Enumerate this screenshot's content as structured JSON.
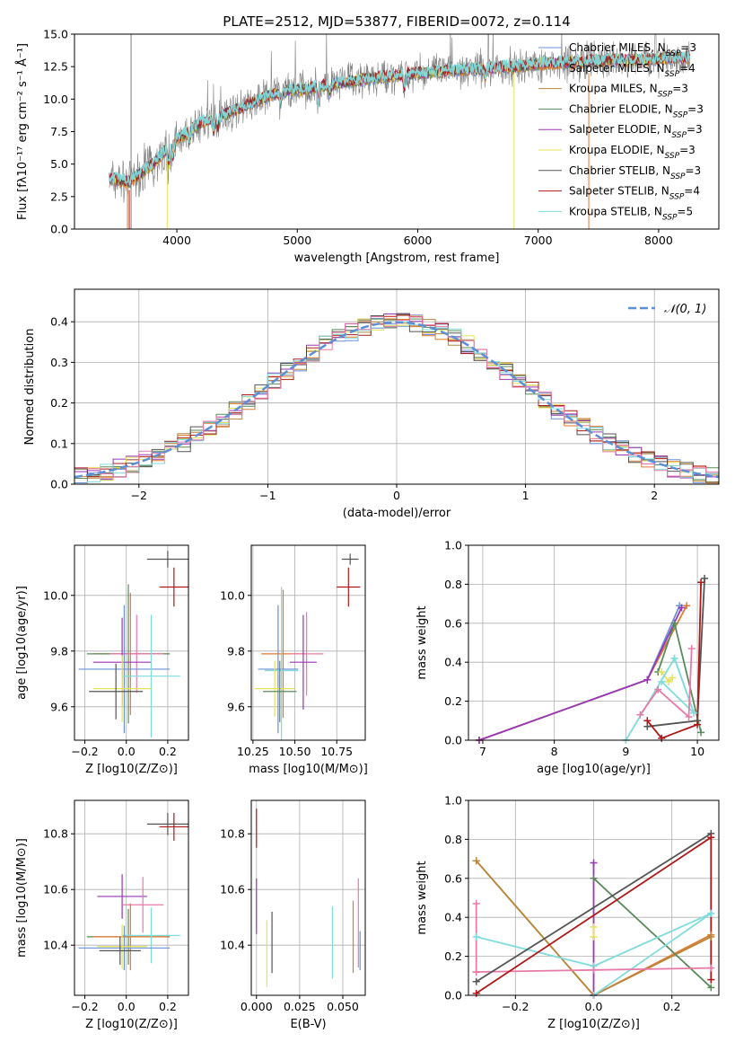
{
  "colors": {
    "chabrier_miles": "#6a8fd8",
    "salpeter_miles": "#e07a2e",
    "kroupa_miles": "#b8863b",
    "chabrier_elodie": "#5a8a5a",
    "salpeter_elodie": "#9a36b8",
    "kroupa_elodie": "#e3e35a",
    "chabrier_stelib": "#555555",
    "salpeter_stelib": "#b01818",
    "kroupa_stelib": "#80dcdc",
    "extra_pink": "#e87aa8",
    "spectrum_gray": "#7f7f7f",
    "gaussian": "#5b8fd6"
  },
  "chart_data": [
    {
      "type": "line",
      "title": "PLATE=2512, MJD=53877, FIBERID=0072, z=0.114",
      "xlabel": "wavelength [Angstrom, rest frame]",
      "ylabel": "Flux [fλ10⁻¹⁷ erg cm⁻² s⁻¹ Å⁻¹]",
      "xlim": [
        3150,
        8500
      ],
      "ylim": [
        0,
        15
      ],
      "xticks": [
        "4000",
        "5000",
        "6000",
        "7000",
        "8000"
      ],
      "yticks": [
        "0.0",
        "2.5",
        "5.0",
        "7.5",
        "10.0",
        "12.5",
        "15.0"
      ],
      "legend": "upper-right",
      "continuum_x": [
        3450,
        3600,
        3800,
        4000,
        4200,
        4400,
        4600,
        4800,
        5000,
        5200,
        5400,
        5600,
        5800,
        6000,
        6200,
        6400,
        6600,
        6800,
        7000,
        7200,
        7400,
        7600,
        7800,
        8000,
        8250
      ],
      "continuum_y": [
        3.9,
        3.6,
        5.0,
        6.9,
        8.2,
        8.8,
        9.6,
        10.4,
        10.7,
        11.0,
        11.3,
        11.6,
        11.8,
        12.0,
        12.1,
        12.3,
        12.4,
        12.5,
        12.7,
        12.8,
        12.9,
        13.0,
        13.0,
        13.1,
        13.2
      ],
      "series": [
        {
          "name": "Chabrier MILES, N_SSP=3",
          "color_key": "chabrier_miles"
        },
        {
          "name": "Salpeter MILES, N_SSP=4",
          "color_key": "salpeter_miles"
        },
        {
          "name": "Kroupa MILES, N_SSP=3",
          "color_key": "kroupa_miles"
        },
        {
          "name": "Chabrier ELODIE, N_SSP=3",
          "color_key": "chabrier_elodie"
        },
        {
          "name": "Salpeter ELODIE, N_SSP=3",
          "color_key": "salpeter_elodie"
        },
        {
          "name": "Kroupa ELODIE, N_SSP=3",
          "color_key": "kroupa_elodie"
        },
        {
          "name": "Chabrier STELIB, N_SSP=3",
          "color_key": "chabrier_stelib"
        },
        {
          "name": "Salpeter STELIB, N_SSP=4",
          "color_key": "salpeter_stelib"
        },
        {
          "name": "Kroupa STELIB, N_SSP=5",
          "color_key": "kroupa_stelib"
        }
      ]
    },
    {
      "type": "histogram",
      "xlabel": "(data-model)/error",
      "ylabel": "Normed distribution",
      "xlim": [
        -2.5,
        2.5
      ],
      "ylim": [
        0,
        0.48
      ],
      "xticks": [
        "−2",
        "−1",
        "0",
        "1",
        "2"
      ],
      "yticks": [
        "0.0",
        "0.1",
        "0.2",
        "0.3",
        "0.4"
      ],
      "legend": "upper-right",
      "gaussian_label": "𝒩(0, 1)",
      "bin_width": 0.1
    },
    {
      "type": "scatter",
      "xlabel": "Z [log10(Z/Z⊙)]",
      "ylabel": "age [log10(age/yr)]",
      "xlim": [
        -0.25,
        0.3
      ],
      "ylim": [
        9.48,
        10.18
      ],
      "xticks": [
        -0.2,
        0.0,
        0.2
      ],
      "yticks": [
        9.6,
        9.8,
        10.0
      ],
      "points": [
        {
          "c": "chabrier_stelib",
          "x": 0.2,
          "y": 10.13,
          "xe": 0.1,
          "ye": 0.03
        },
        {
          "c": "salpeter_stelib",
          "x": 0.23,
          "y": 10.03,
          "xe": 0.07,
          "ye": 0.07
        },
        {
          "c": "salpeter_miles",
          "x": 0.02,
          "y": 9.79,
          "xe": 0.18,
          "ye": 0.22
        },
        {
          "c": "chabrier_elodie",
          "x": 0.01,
          "y": 9.79,
          "xe": 0.2,
          "ye": 0.25
        },
        {
          "c": "extra_pink",
          "x": 0.05,
          "y": 9.79,
          "xe": 0.13,
          "ye": 0.14
        },
        {
          "c": "salpeter_elodie",
          "x": -0.02,
          "y": 9.76,
          "xe": 0.14,
          "ye": 0.16
        },
        {
          "c": "chabrier_miles",
          "x": -0.01,
          "y": 9.735,
          "xe": 0.22,
          "ye": 0.23
        },
        {
          "c": "kroupa_stelib",
          "x": 0.12,
          "y": 9.71,
          "xe": 0.14,
          "ye": 0.22
        },
        {
          "c": "kroupa_elodie",
          "x": -0.02,
          "y": 9.665,
          "xe": 0.14,
          "ye": 0.12
        },
        {
          "c": "chabrier_stelib",
          "x": -0.05,
          "y": 9.655,
          "xe": 0.13,
          "ye": 0.1
        }
      ]
    },
    {
      "type": "scatter",
      "xlabel": "mass [log10(M/M⊙)]",
      "ylabel": "",
      "xlim": [
        10.24,
        10.92
      ],
      "ylim": [
        9.48,
        10.18
      ],
      "xticks": [
        10.25,
        10.5,
        10.75
      ],
      "yticks": [
        9.6,
        9.8,
        10.0
      ],
      "points": [
        {
          "c": "chabrier_stelib",
          "x": 10.83,
          "y": 10.13,
          "xe": 0.05,
          "ye": 0.02
        },
        {
          "c": "salpeter_stelib",
          "x": 10.82,
          "y": 10.03,
          "xe": 0.07,
          "ye": 0.07
        },
        {
          "c": "salpeter_miles",
          "x": 10.43,
          "y": 9.79,
          "xe": 0.13,
          "ye": 0.23
        },
        {
          "c": "extra_pink",
          "x": 10.57,
          "y": 9.79,
          "xe": 0.1,
          "ye": 0.15
        },
        {
          "c": "salpeter_elodie",
          "x": 10.55,
          "y": 9.76,
          "xe": 0.08,
          "ye": 0.17
        },
        {
          "c": "chabrier_miles",
          "x": 10.4,
          "y": 9.735,
          "xe": 0.12,
          "ye": 0.23
        },
        {
          "c": "kroupa_stelib",
          "x": 10.42,
          "y": 9.73,
          "xe": 0.1,
          "ye": 0.3
        },
        {
          "c": "kroupa_elodie",
          "x": 10.38,
          "y": 9.665,
          "xe": 0.12,
          "ye": 0.1
        },
        {
          "c": "chabrier_elodie",
          "x": 10.41,
          "y": 9.655,
          "xe": 0.1,
          "ye": 0.11
        }
      ]
    },
    {
      "type": "line",
      "xlabel": "age [log10(age/yr)]",
      "ylabel": "mass weight",
      "xlim": [
        6.8,
        10.3
      ],
      "ylim": [
        0,
        1.0
      ],
      "xticks": [
        7,
        8,
        9,
        10
      ],
      "yticks": [
        0.0,
        0.2,
        0.4,
        0.6,
        0.8,
        1.0
      ],
      "series": [
        {
          "c": "chabrier_miles",
          "x": [
            6.95,
            9.3,
            9.75
          ],
          "y": [
            0.0,
            0.31,
            0.69
          ]
        },
        {
          "c": "salpeter_miles",
          "x": [
            6.95,
            9.3,
            9.85
          ],
          "y": [
            0.0,
            0.31,
            0.69
          ]
        },
        {
          "c": "salpeter_elodie",
          "x": [
            6.95,
            9.3,
            9.78
          ],
          "y": [
            0.0,
            0.31,
            0.68
          ]
        },
        {
          "c": "chabrier_elodie",
          "x": [
            9.45,
            9.68,
            10.05
          ],
          "y": [
            0.35,
            0.6,
            0.04
          ]
        },
        {
          "c": "kroupa_elodie",
          "x": [
            9.5,
            9.6,
            9.65
          ],
          "y": [
            0.35,
            0.3,
            0.32
          ]
        },
        {
          "c": "kroupa_stelib",
          "x": [
            9.0,
            9.68,
            9.95
          ],
          "y": [
            0.0,
            0.42,
            0.14
          ]
        },
        {
          "c": "kroupa_stelib",
          "x": [
            9.68,
            9.95,
            9.5
          ],
          "y": [
            0.42,
            0.14,
            0.3
          ]
        },
        {
          "c": "extra_pink",
          "x": [
            9.2,
            9.45,
            9.88,
            9.92
          ],
          "y": [
            0.13,
            0.26,
            0.12,
            0.47
          ]
        },
        {
          "c": "chabrier_stelib",
          "x": [
            9.3,
            10.0,
            10.1
          ],
          "y": [
            0.07,
            0.1,
            0.83
          ]
        },
        {
          "c": "salpeter_stelib",
          "x": [
            9.3,
            9.5,
            10.0,
            10.05
          ],
          "y": [
            0.1,
            0.01,
            0.08,
            0.81
          ]
        }
      ]
    },
    {
      "type": "scatter",
      "xlabel": "Z [log10(Z/Z⊙)]",
      "ylabel": "mass [log10(M/M⊙)]",
      "xlim": [
        -0.25,
        0.3
      ],
      "ylim": [
        10.22,
        10.92
      ],
      "xticks": [
        -0.2,
        0.0,
        0.2
      ],
      "yticks": [
        10.4,
        10.6,
        10.8
      ],
      "points": [
        {
          "c": "chabrier_stelib",
          "x": 0.2,
          "y": 10.835,
          "xe": 0.1,
          "ye": 0.04
        },
        {
          "c": "salpeter_stelib",
          "x": 0.23,
          "y": 10.825,
          "xe": 0.07,
          "ye": 0.05
        },
        {
          "c": "salpeter_elodie",
          "x": -0.02,
          "y": 10.575,
          "xe": 0.12,
          "ye": 0.08
        },
        {
          "c": "extra_pink",
          "x": 0.08,
          "y": 10.545,
          "xe": 0.1,
          "ye": 0.1
        },
        {
          "c": "chabrier_elodie",
          "x": 0.01,
          "y": 10.43,
          "xe": 0.2,
          "ye": 0.1
        },
        {
          "c": "salpeter_miles",
          "x": 0.02,
          "y": 10.43,
          "xe": 0.18,
          "ye": 0.12
        },
        {
          "c": "kroupa_stelib",
          "x": 0.12,
          "y": 10.435,
          "xe": 0.14,
          "ye": 0.1
        },
        {
          "c": "chabrier_miles",
          "x": -0.01,
          "y": 10.39,
          "xe": 0.22,
          "ye": 0.08
        },
        {
          "c": "kroupa_elodie",
          "x": -0.02,
          "y": 10.395,
          "xe": 0.12,
          "ye": 0.08
        },
        {
          "c": "chabrier_stelib",
          "x": -0.03,
          "y": 10.38,
          "xe": 0.1,
          "ye": 0.05
        }
      ]
    },
    {
      "type": "scatter",
      "xlabel": "E(B-V)",
      "ylabel": "",
      "xlim": [
        -0.003,
        0.063
      ],
      "ylim": [
        10.22,
        10.92
      ],
      "xticks": [
        "0.000",
        "0.025",
        "0.050"
      ],
      "yticks": [
        10.4,
        10.6,
        10.8
      ],
      "points": [
        {
          "c": "salpeter_stelib",
          "x": 0.0,
          "y": 10.82,
          "ye": 0.07
        },
        {
          "c": "salpeter_elodie",
          "x": 0.0,
          "y": 10.54,
          "ye": 0.1
        },
        {
          "c": "kroupa_elodie",
          "x": 0.006,
          "y": 10.37,
          "ye": 0.12
        },
        {
          "c": "chabrier_stelib",
          "x": 0.009,
          "y": 10.41,
          "ye": 0.11
        },
        {
          "c": "kroupa_stelib",
          "x": 0.044,
          "y": 10.41,
          "ye": 0.13
        },
        {
          "c": "salpeter_miles",
          "x": 0.056,
          "y": 10.43,
          "ye": 0.13
        },
        {
          "c": "extra_pink",
          "x": 0.059,
          "y": 10.48,
          "ye": 0.16
        },
        {
          "c": "chabrier_miles",
          "x": 0.06,
          "y": 10.38,
          "ye": 0.07
        }
      ]
    },
    {
      "type": "line",
      "xlabel": "Z [log10(Z/Z⊙)]",
      "ylabel": "mass weight",
      "xlim": [
        -0.32,
        0.32
      ],
      "ylim": [
        0,
        1.0
      ],
      "xticks": [
        -0.2,
        0.0,
        0.2
      ],
      "yticks": [
        0.0,
        0.2,
        0.4,
        0.6,
        0.8,
        1.0
      ],
      "series": [
        {
          "c": "salpeter_miles",
          "x": [
            -0.3,
            0.0,
            0.3
          ],
          "y": [
            0.69,
            0.0,
            0.31
          ]
        },
        {
          "c": "kroupa_miles",
          "x": [
            -0.3,
            0.0,
            0.3
          ],
          "y": [
            0.69,
            0.0,
            0.3
          ]
        },
        {
          "c": "chabrier_elodie",
          "x": [
            0.0,
            0.3
          ],
          "y": [
            0.6,
            0.04
          ]
        },
        {
          "c": "salpeter_elodie",
          "x": [
            0.0,
            0.0
          ],
          "y": [
            0.0,
            0.68
          ]
        },
        {
          "c": "kroupa_elodie",
          "x": [
            0.0,
            0.0
          ],
          "y": [
            0.3,
            0.35
          ]
        },
        {
          "c": "kroupa_stelib",
          "x": [
            -0.3,
            0.0,
            0.3
          ],
          "y": [
            0.3,
            0.15,
            0.42
          ]
        },
        {
          "c": "kroupa_stelib",
          "x": [
            0.0,
            0.3
          ],
          "y": [
            0.0,
            0.42
          ]
        },
        {
          "c": "extra_pink",
          "x": [
            -0.3,
            0.0,
            0.3
          ],
          "y": [
            0.12,
            0.13,
            0.14
          ]
        },
        {
          "c": "extra_pink",
          "x": [
            -0.3,
            -0.3
          ],
          "y": [
            0.12,
            0.47
          ]
        },
        {
          "c": "chabrier_stelib",
          "x": [
            -0.3,
            0.3
          ],
          "y": [
            0.07,
            0.83
          ]
        },
        {
          "c": "salpeter_stelib",
          "x": [
            -0.3,
            0.3,
            0.3
          ],
          "y": [
            0.01,
            0.81,
            0.08
          ]
        }
      ]
    }
  ]
}
